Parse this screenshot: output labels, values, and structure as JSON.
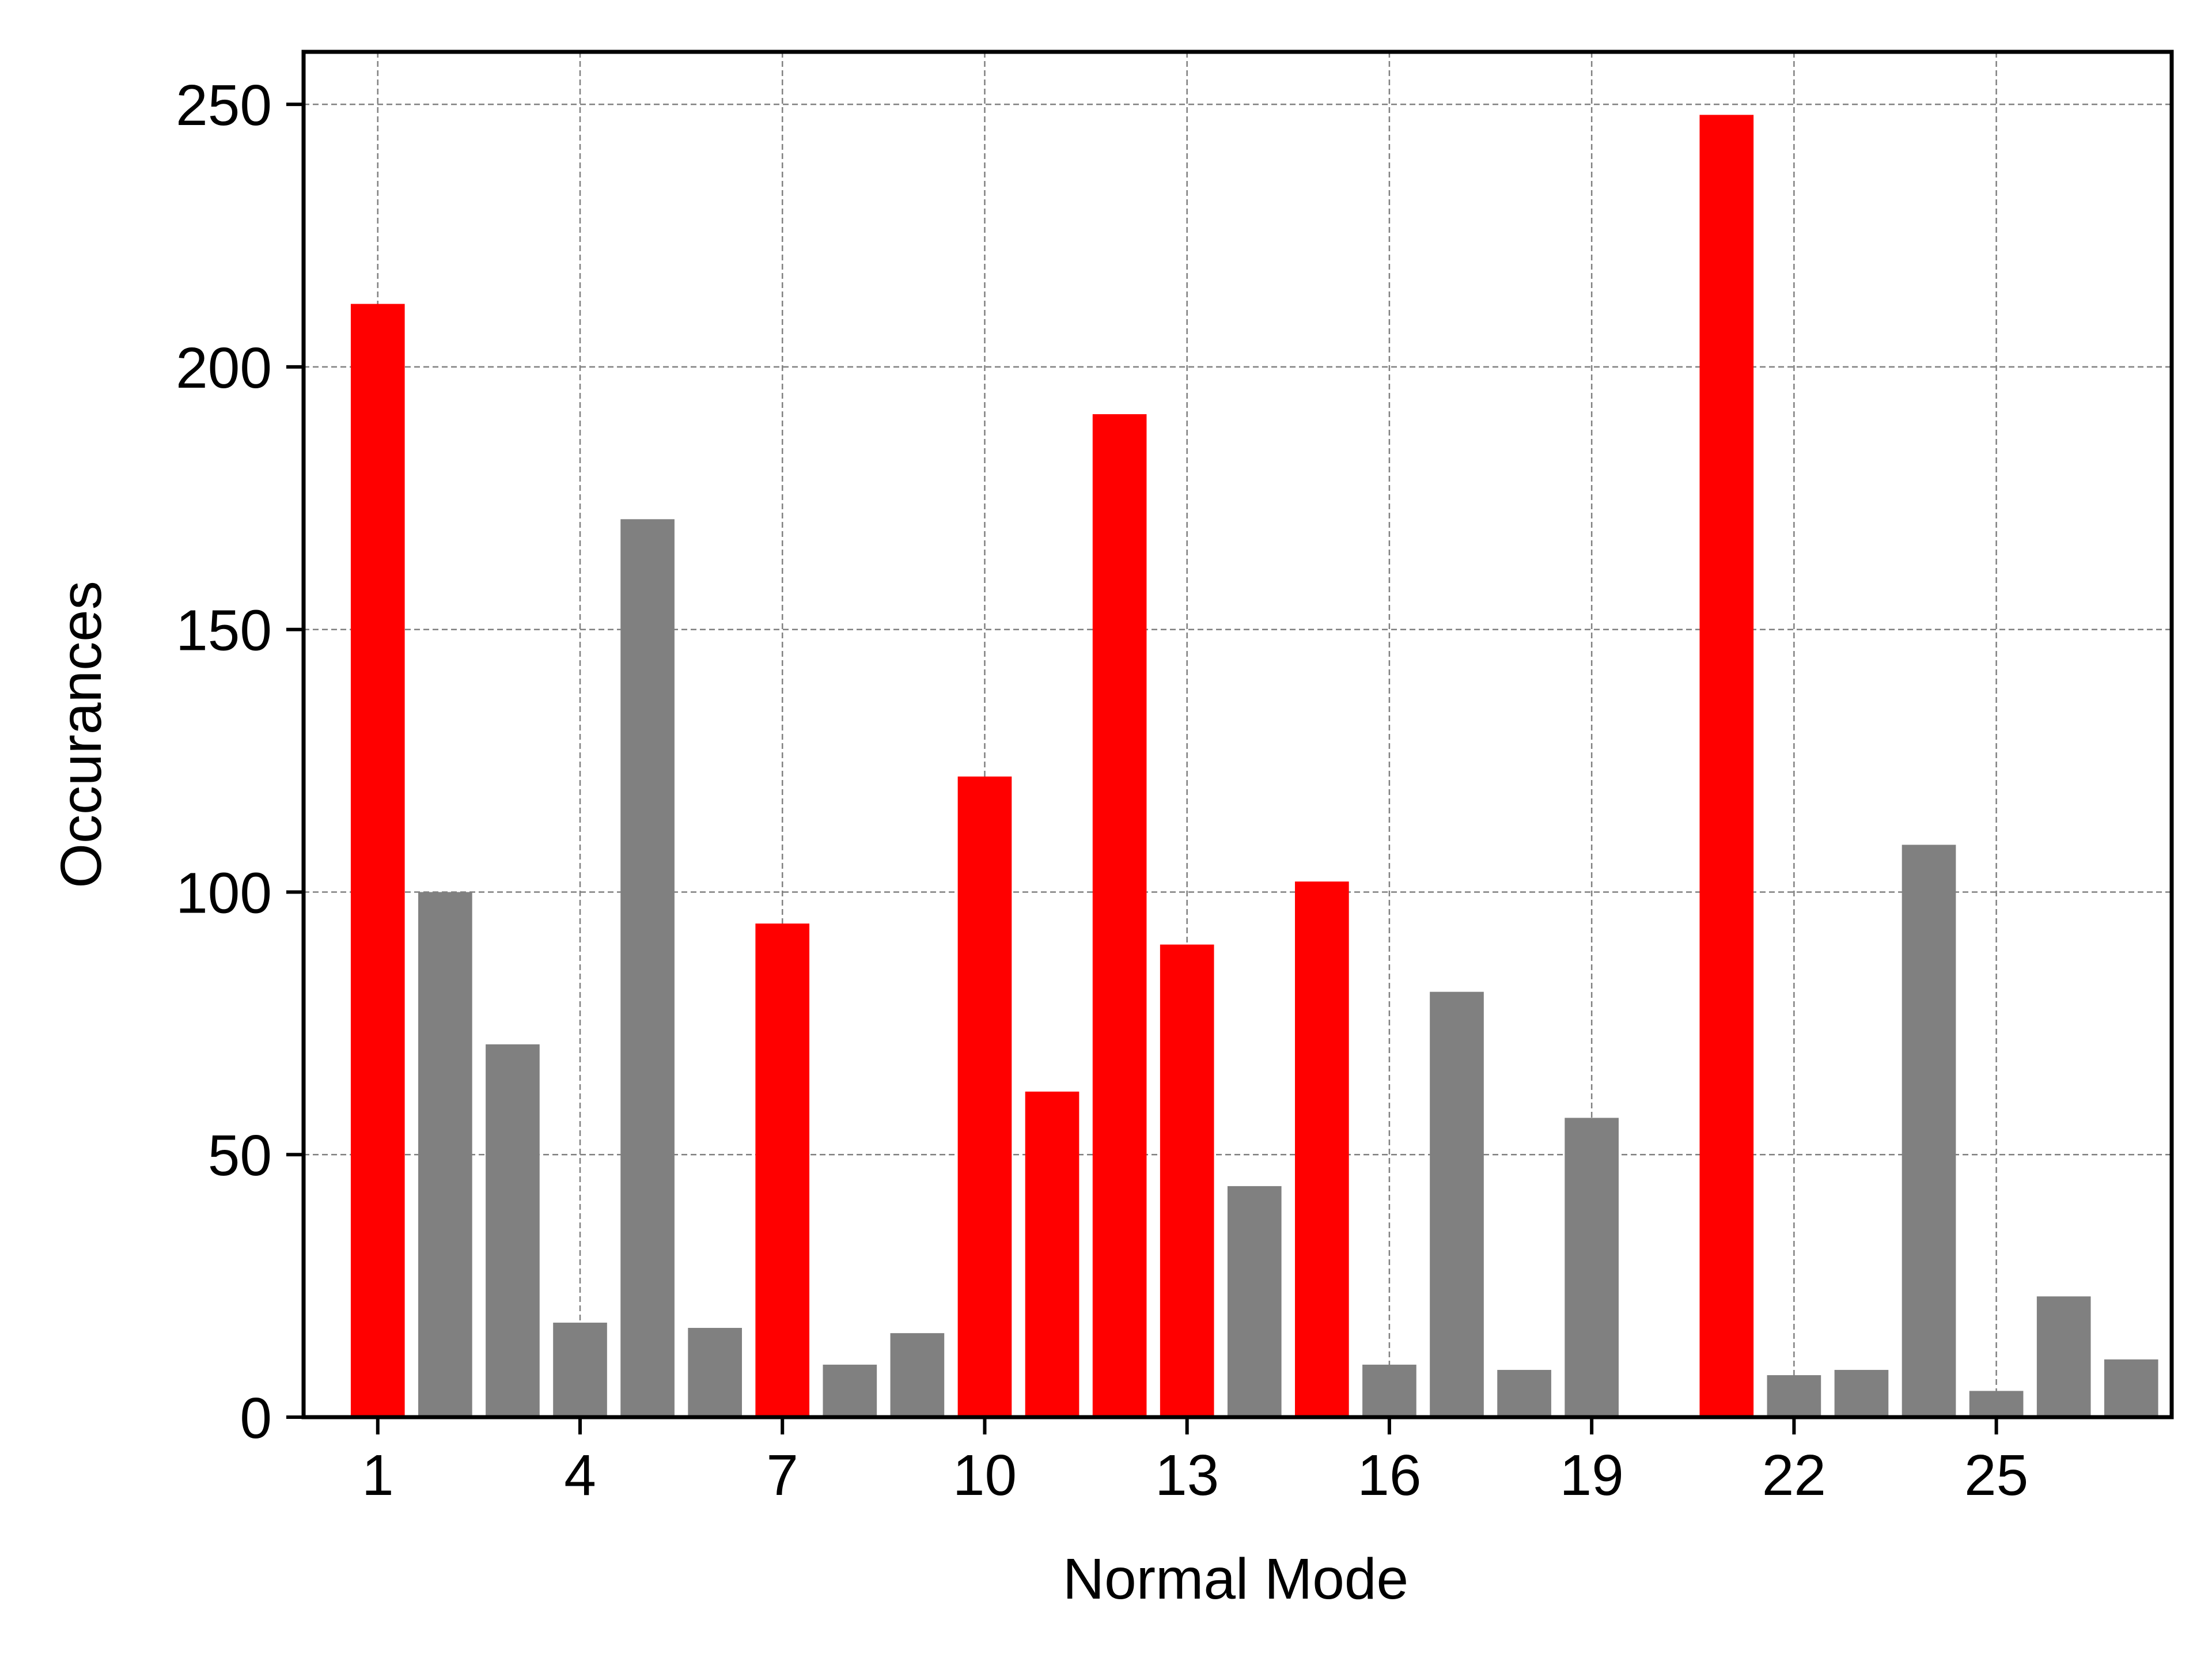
{
  "chart_data": {
    "type": "bar",
    "title": "",
    "xlabel": "Normal Mode",
    "ylabel": "Occurances",
    "x": [
      1,
      2,
      3,
      4,
      5,
      6,
      7,
      8,
      9,
      10,
      11,
      12,
      13,
      14,
      15,
      16,
      17,
      18,
      19,
      20,
      21,
      22,
      23,
      24,
      25,
      26,
      27
    ],
    "values": [
      212,
      100,
      71,
      18,
      171,
      17,
      94,
      10,
      16,
      122,
      62,
      191,
      90,
      44,
      102,
      10,
      81,
      9,
      57,
      0,
      248,
      8,
      9,
      109,
      5,
      23,
      11
    ],
    "highlight": [
      1,
      0,
      0,
      0,
      0,
      0,
      1,
      0,
      0,
      1,
      1,
      1,
      1,
      0,
      1,
      0,
      0,
      0,
      0,
      0,
      1,
      0,
      0,
      0,
      0,
      0,
      0
    ],
    "xticks": [
      "1",
      "4",
      "7",
      "10",
      "13",
      "16",
      "19",
      "22",
      "25"
    ],
    "xtick_values": [
      1,
      4,
      7,
      10,
      13,
      16,
      19,
      22,
      25
    ],
    "yticks": [
      "0",
      "50",
      "100",
      "150",
      "200",
      "250"
    ],
    "ytick_values": [
      0,
      50,
      100,
      150,
      200,
      250
    ],
    "xlim": [
      -0.1,
      27.6
    ],
    "ylim": [
      0,
      260
    ],
    "grid": true,
    "colors": {
      "highlight": "#ff0000",
      "default": "#808080",
      "grid": "#808080",
      "axis": "#000000"
    }
  }
}
